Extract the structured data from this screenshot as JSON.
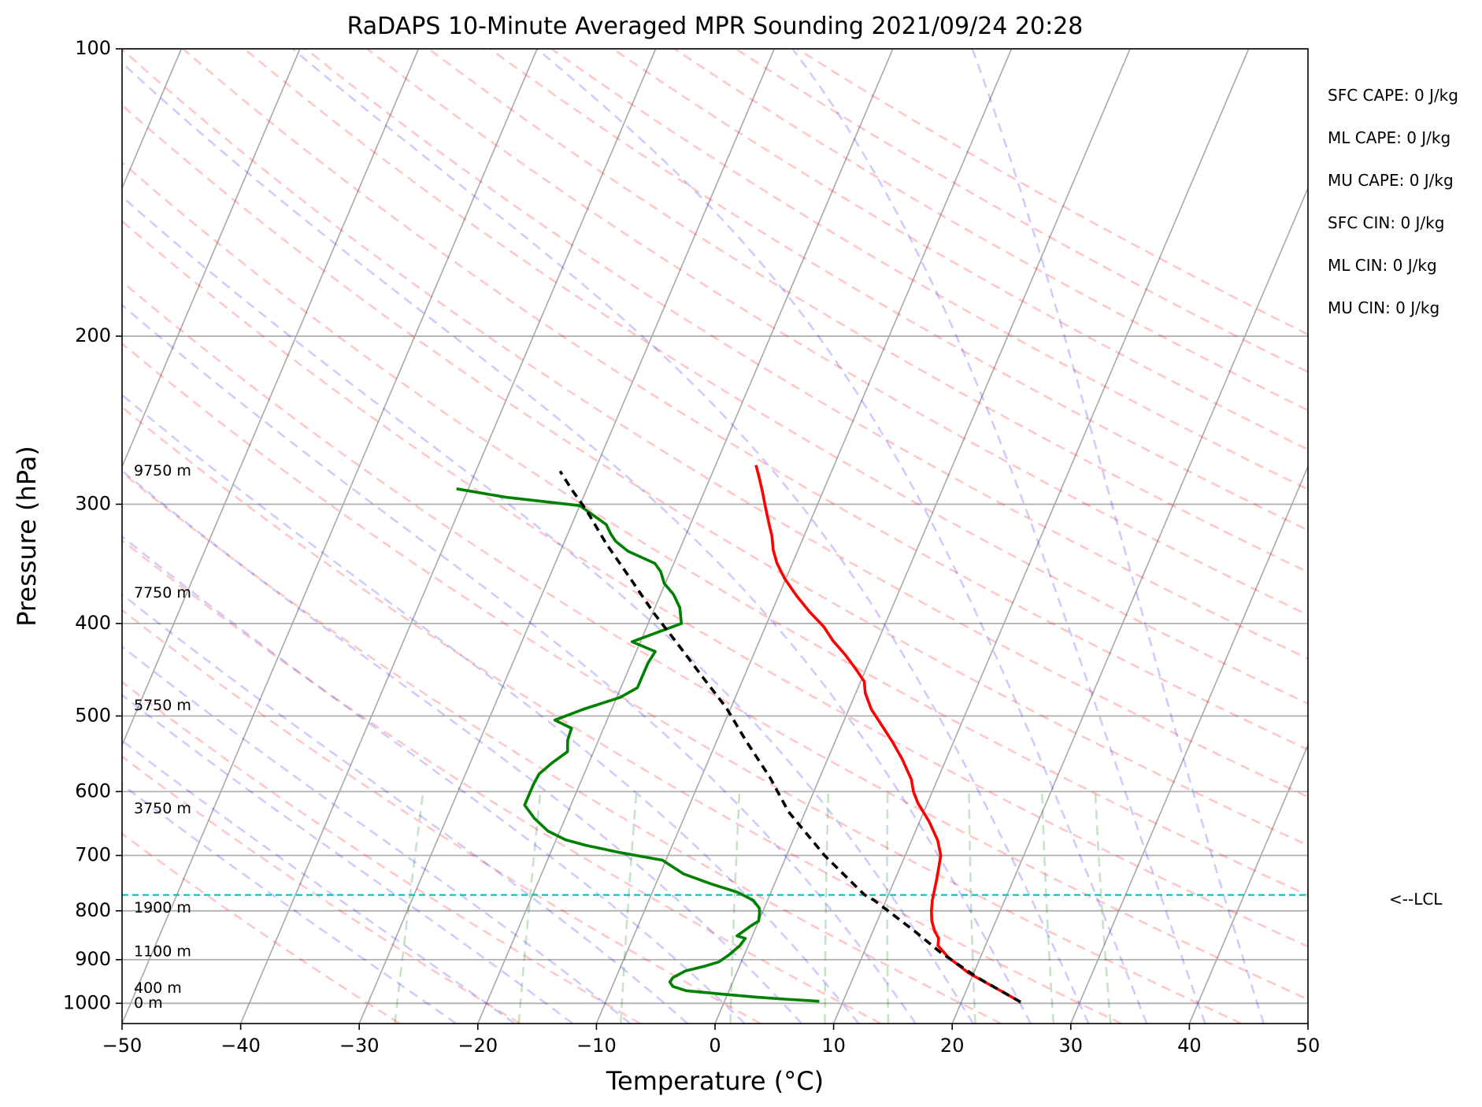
{
  "chart_data": {
    "type": "skew-t",
    "title": "RaDAPS 10-Minute Averaged MPR Sounding 2021/09/24 20:28",
    "xlabel": "Temperature (°C)",
    "ylabel": "Pressure (hPa)",
    "xlim": [
      -50,
      50
    ],
    "ylim": [
      1050,
      100
    ],
    "y_scale": "log",
    "grid": true,
    "x_ticks": [
      "−50",
      "−40",
      "−30",
      "−20",
      "−10",
      "0",
      "10",
      "20",
      "30",
      "40",
      "50"
    ],
    "x_tick_values": [
      -50,
      -40,
      -30,
      -20,
      -10,
      0,
      10,
      20,
      30,
      40,
      50
    ],
    "y_ticks": [
      "100",
      "200",
      "300",
      "400",
      "500",
      "600",
      "700",
      "800",
      "900",
      "1000"
    ],
    "y_tick_values": [
      100,
      200,
      300,
      400,
      500,
      600,
      700,
      800,
      900,
      1000
    ],
    "height_labels": [
      {
        "text": "9750 m",
        "p": 277
      },
      {
        "text": "7750 m",
        "p": 372
      },
      {
        "text": "5750 m",
        "p": 488
      },
      {
        "text": "3750 m",
        "p": 626
      },
      {
        "text": "1900 m",
        "p": 795
      },
      {
        "text": "1100 m",
        "p": 883
      },
      {
        "text": "400 m",
        "p": 965
      },
      {
        "text": "0 m",
        "p": 1000
      }
    ],
    "series": [
      {
        "color": "#ff0000",
        "style": "solid",
        "points": [
          [
            25.0,
            997
          ],
          [
            22.9,
            970
          ],
          [
            19.6,
            930
          ],
          [
            17.3,
            895
          ],
          [
            16.0,
            870
          ],
          [
            15.8,
            855
          ],
          [
            15.2,
            840
          ],
          [
            14.6,
            820
          ],
          [
            14.2,
            800
          ],
          [
            13.9,
            780
          ],
          [
            13.5,
            740
          ],
          [
            13.0,
            700
          ],
          [
            12.2,
            675
          ],
          [
            10.8,
            645
          ],
          [
            9.2,
            617
          ],
          [
            8.4,
            600
          ],
          [
            7.8,
            583
          ],
          [
            6.3,
            555
          ],
          [
            4.9,
            533
          ],
          [
            3.4,
            512
          ],
          [
            1.9,
            492
          ],
          [
            0.8,
            473
          ],
          [
            0.3,
            460
          ],
          [
            -0.9,
            446
          ],
          [
            -2.3,
            431
          ],
          [
            -3.8,
            417
          ],
          [
            -5.1,
            403
          ],
          [
            -6.8,
            389
          ],
          [
            -8.5,
            374
          ],
          [
            -10.1,
            359
          ],
          [
            -11.3,
            346
          ],
          [
            -12.1,
            335
          ],
          [
            -12.7,
            324
          ],
          [
            -13.5,
            313
          ],
          [
            -14.3,
            302
          ],
          [
            -15.1,
            291
          ],
          [
            -15.9,
            281
          ],
          [
            -16.6,
            273
          ]
        ]
      },
      {
        "color": "#008000",
        "style": "solid",
        "points": [
          [
            8.0,
            995
          ],
          [
            5.0,
            990
          ],
          [
            2.5,
            985
          ],
          [
            -0.5,
            978
          ],
          [
            -3.6,
            970
          ],
          [
            -4.9,
            960
          ],
          [
            -5.3,
            950
          ],
          [
            -5.2,
            940
          ],
          [
            -4.4,
            925
          ],
          [
            -3.0,
            915
          ],
          [
            -1.9,
            905
          ],
          [
            -1.3,
            890
          ],
          [
            -0.7,
            870
          ],
          [
            -0.5,
            855
          ],
          [
            -1.3,
            850
          ],
          [
            -0.9,
            840
          ],
          [
            -0.5,
            830
          ],
          [
            0.0,
            820
          ],
          [
            -0.2,
            805
          ],
          [
            -0.4,
            795
          ],
          [
            -1.2,
            780
          ],
          [
            -2.8,
            765
          ],
          [
            -5.3,
            750
          ],
          [
            -8.0,
            732
          ],
          [
            -10.3,
            708
          ],
          [
            -14.2,
            695
          ],
          [
            -17.3,
            683
          ],
          [
            -19.2,
            674
          ],
          [
            -21.0,
            660
          ],
          [
            -22.6,
            640
          ],
          [
            -23.9,
            620
          ],
          [
            -23.9,
            605
          ],
          [
            -23.9,
            590
          ],
          [
            -23.8,
            575
          ],
          [
            -23.1,
            560
          ],
          [
            -22.2,
            545
          ],
          [
            -22.6,
            530
          ],
          [
            -22.7,
            515
          ],
          [
            -24.4,
            505
          ],
          [
            -22.4,
            492
          ],
          [
            -19.7,
            478
          ],
          [
            -18.6,
            467
          ],
          [
            -18.6,
            455
          ],
          [
            -18.6,
            440
          ],
          [
            -18.4,
            428
          ],
          [
            -20.7,
            418
          ],
          [
            -17.2,
            400
          ],
          [
            -17.9,
            385
          ],
          [
            -18.9,
            373
          ],
          [
            -20.1,
            363
          ],
          [
            -20.8,
            353
          ],
          [
            -21.6,
            346
          ],
          [
            -24.3,
            336
          ],
          [
            -25.7,
            328
          ],
          [
            -26.4,
            322
          ],
          [
            -27.1,
            315
          ],
          [
            -30.0,
            301
          ],
          [
            -36.5,
            295
          ],
          [
            -41.0,
            289
          ]
        ]
      },
      {
        "color": "#000000",
        "style": "dashed",
        "points": [
          [
            25.0,
            997
          ],
          [
            20.5,
            940
          ],
          [
            16.5,
            885
          ],
          [
            13.5,
            840
          ],
          [
            9.0,
            780
          ],
          [
            8.0,
            770
          ],
          [
            3.2,
            700
          ],
          [
            -1.4,
            630
          ],
          [
            -4.2,
            580
          ],
          [
            -7.6,
            530
          ],
          [
            -10.4,
            490
          ],
          [
            -13.5,
            455
          ],
          [
            -16.8,
            420
          ],
          [
            -19.9,
            390
          ],
          [
            -23.0,
            360
          ],
          [
            -26.4,
            330
          ],
          [
            -29.2,
            305
          ],
          [
            -31.2,
            290
          ],
          [
            -32.9,
            277
          ]
        ]
      }
    ],
    "lcl": {
      "p": 770,
      "label": "<--LCL"
    },
    "indices": [
      "SFC CAPE: 0 J/kg",
      "ML CAPE: 0 J/kg",
      "MU CAPE: 0 J/kg",
      "SFC CIN: 0 J/kg",
      "ML CIN: 0 J/kg",
      "MU CIN: 0 J/kg"
    ],
    "colors": {
      "temperature": "#ff0000",
      "dewpoint": "#008000",
      "parcel": "#000000",
      "lcl": "#00bfbf",
      "dry_adiabats": "#ff0000",
      "moist_adiabats": "#0000ff",
      "mixing_ratio": "#008000",
      "isotherms": "#808080"
    }
  }
}
